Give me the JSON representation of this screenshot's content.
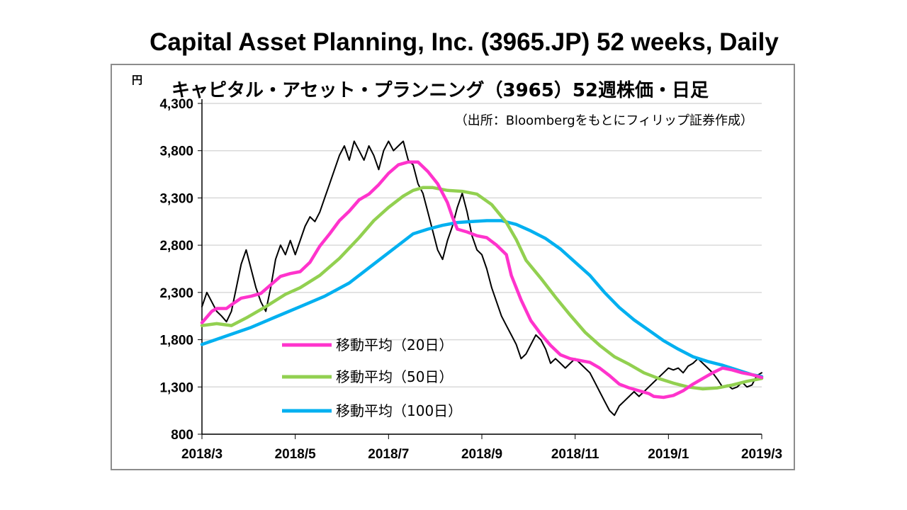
{
  "page_title": "Capital Asset Planning, Inc. (3965.JP) 52 weeks, Daily",
  "chart_data": {
    "type": "line",
    "title": "キャピタル・アセット・プランニング（3965）52週株価・日足",
    "source_note": "（出所：Bloombergをもとにフィリップ証券作成）",
    "y_unit_label": "円",
    "ylim": [
      800,
      4300
    ],
    "yticks": [
      "4,300",
      "3,800",
      "3,300",
      "2,800",
      "2,300",
      "1,800",
      "1,300",
      "800"
    ],
    "ytick_values": [
      4300,
      3800,
      3300,
      2800,
      2300,
      1800,
      1300,
      800
    ],
    "xticks": [
      "2018/3",
      "2018/5",
      "2018/7",
      "2018/9",
      "2018/11",
      "2019/1",
      "2019/3"
    ],
    "grid": true,
    "legend_position": "lower-left",
    "series": [
      {
        "name": "移動平均（20日）",
        "color": "#ff33cc",
        "points": [
          [
            0,
            1980
          ],
          [
            2,
            2100
          ],
          [
            3,
            2130
          ],
          [
            5,
            2130
          ],
          [
            6,
            2170
          ],
          [
            8,
            2240
          ],
          [
            10,
            2260
          ],
          [
            12,
            2290
          ],
          [
            14,
            2380
          ],
          [
            16,
            2470
          ],
          [
            18,
            2500
          ],
          [
            20,
            2520
          ],
          [
            22,
            2620
          ],
          [
            24,
            2790
          ],
          [
            26,
            2920
          ],
          [
            28,
            3060
          ],
          [
            30,
            3160
          ],
          [
            32,
            3280
          ],
          [
            34,
            3340
          ],
          [
            36,
            3440
          ],
          [
            38,
            3560
          ],
          [
            40,
            3650
          ],
          [
            42,
            3680
          ],
          [
            44,
            3680
          ],
          [
            46,
            3580
          ],
          [
            48,
            3450
          ],
          [
            50,
            3250
          ],
          [
            51,
            3100
          ],
          [
            52,
            2970
          ],
          [
            54,
            2940
          ],
          [
            56,
            2900
          ],
          [
            58,
            2880
          ],
          [
            60,
            2800
          ],
          [
            62,
            2700
          ],
          [
            63,
            2480
          ],
          [
            65,
            2220
          ],
          [
            67,
            2000
          ],
          [
            69,
            1860
          ],
          [
            71,
            1740
          ],
          [
            73,
            1640
          ],
          [
            75,
            1600
          ],
          [
            77,
            1580
          ],
          [
            79,
            1560
          ],
          [
            81,
            1500
          ],
          [
            83,
            1420
          ],
          [
            85,
            1330
          ],
          [
            87,
            1290
          ],
          [
            89,
            1260
          ],
          [
            91,
            1230
          ],
          [
            92,
            1200
          ],
          [
            94,
            1190
          ],
          [
            96,
            1210
          ],
          [
            98,
            1260
          ],
          [
            100,
            1330
          ],
          [
            102,
            1390
          ],
          [
            104,
            1450
          ],
          [
            106,
            1500
          ],
          [
            108,
            1480
          ],
          [
            110,
            1450
          ],
          [
            112,
            1430
          ],
          [
            114,
            1400
          ]
        ]
      },
      {
        "name": "移動平均（50日）",
        "color": "#92d050",
        "points": [
          [
            0,
            1950
          ],
          [
            3,
            1970
          ],
          [
            6,
            1950
          ],
          [
            9,
            2030
          ],
          [
            13,
            2150
          ],
          [
            17,
            2280
          ],
          [
            20,
            2350
          ],
          [
            24,
            2480
          ],
          [
            28,
            2660
          ],
          [
            32,
            2880
          ],
          [
            35,
            3060
          ],
          [
            38,
            3200
          ],
          [
            41,
            3320
          ],
          [
            43,
            3380
          ],
          [
            45,
            3410
          ],
          [
            47,
            3410
          ],
          [
            50,
            3380
          ],
          [
            53,
            3370
          ],
          [
            56,
            3340
          ],
          [
            59,
            3230
          ],
          [
            62,
            3040
          ],
          [
            64,
            2860
          ],
          [
            66,
            2640
          ],
          [
            69,
            2450
          ],
          [
            72,
            2250
          ],
          [
            75,
            2060
          ],
          [
            78,
            1880
          ],
          [
            81,
            1740
          ],
          [
            84,
            1620
          ],
          [
            87,
            1540
          ],
          [
            90,
            1450
          ],
          [
            93,
            1390
          ],
          [
            96,
            1340
          ],
          [
            99,
            1300
          ],
          [
            102,
            1280
          ],
          [
            105,
            1290
          ],
          [
            108,
            1320
          ],
          [
            111,
            1360
          ],
          [
            114,
            1390
          ]
        ]
      },
      {
        "name": "移動平均（100日）",
        "color": "#00b0f0",
        "points": [
          [
            0,
            1750
          ],
          [
            5,
            1840
          ],
          [
            10,
            1930
          ],
          [
            15,
            2040
          ],
          [
            20,
            2150
          ],
          [
            25,
            2260
          ],
          [
            30,
            2400
          ],
          [
            35,
            2600
          ],
          [
            40,
            2800
          ],
          [
            43,
            2920
          ],
          [
            46,
            2970
          ],
          [
            49,
            3010
          ],
          [
            52,
            3040
          ],
          [
            55,
            3050
          ],
          [
            58,
            3060
          ],
          [
            61,
            3060
          ],
          [
            64,
            3020
          ],
          [
            67,
            2950
          ],
          [
            70,
            2870
          ],
          [
            73,
            2760
          ],
          [
            76,
            2620
          ],
          [
            79,
            2480
          ],
          [
            82,
            2300
          ],
          [
            85,
            2140
          ],
          [
            88,
            2010
          ],
          [
            91,
            1900
          ],
          [
            94,
            1790
          ],
          [
            97,
            1700
          ],
          [
            100,
            1620
          ],
          [
            103,
            1570
          ],
          [
            106,
            1530
          ],
          [
            109,
            1480
          ],
          [
            112,
            1430
          ],
          [
            114,
            1410
          ]
        ]
      },
      {
        "name": "株価（日足）",
        "color": "#000000",
        "points": [
          [
            0,
            2150
          ],
          [
            1,
            2300
          ],
          [
            2,
            2200
          ],
          [
            3,
            2100
          ],
          [
            4,
            2050
          ],
          [
            5,
            1990
          ],
          [
            6,
            2100
          ],
          [
            7,
            2350
          ],
          [
            8,
            2600
          ],
          [
            9,
            2750
          ],
          [
            10,
            2550
          ],
          [
            11,
            2350
          ],
          [
            12,
            2200
          ],
          [
            13,
            2100
          ],
          [
            14,
            2350
          ],
          [
            15,
            2650
          ],
          [
            16,
            2800
          ],
          [
            17,
            2700
          ],
          [
            18,
            2850
          ],
          [
            19,
            2700
          ],
          [
            20,
            2850
          ],
          [
            21,
            3000
          ],
          [
            22,
            3100
          ],
          [
            23,
            3050
          ],
          [
            24,
            3150
          ],
          [
            25,
            3300
          ],
          [
            26,
            3450
          ],
          [
            27,
            3600
          ],
          [
            28,
            3750
          ],
          [
            29,
            3850
          ],
          [
            30,
            3700
          ],
          [
            31,
            3900
          ],
          [
            32,
            3800
          ],
          [
            33,
            3700
          ],
          [
            34,
            3850
          ],
          [
            35,
            3750
          ],
          [
            36,
            3600
          ],
          [
            37,
            3800
          ],
          [
            38,
            3900
          ],
          [
            39,
            3800
          ],
          [
            40,
            3850
          ],
          [
            41,
            3900
          ],
          [
            42,
            3700
          ],
          [
            43,
            3650
          ],
          [
            44,
            3450
          ],
          [
            45,
            3350
          ],
          [
            46,
            3150
          ],
          [
            47,
            2950
          ],
          [
            48,
            2750
          ],
          [
            49,
            2650
          ],
          [
            50,
            2850
          ],
          [
            51,
            3000
          ],
          [
            52,
            3200
          ],
          [
            53,
            3350
          ],
          [
            54,
            3150
          ],
          [
            55,
            2900
          ],
          [
            56,
            2750
          ],
          [
            57,
            2700
          ],
          [
            58,
            2550
          ],
          [
            59,
            2350
          ],
          [
            60,
            2200
          ],
          [
            61,
            2050
          ],
          [
            62,
            1950
          ],
          [
            63,
            1850
          ],
          [
            64,
            1750
          ],
          [
            65,
            1600
          ],
          [
            66,
            1650
          ],
          [
            67,
            1750
          ],
          [
            68,
            1850
          ],
          [
            69,
            1800
          ],
          [
            70,
            1700
          ],
          [
            71,
            1550
          ],
          [
            72,
            1600
          ],
          [
            73,
            1550
          ],
          [
            74,
            1500
          ],
          [
            75,
            1550
          ],
          [
            76,
            1600
          ],
          [
            77,
            1550
          ],
          [
            78,
            1500
          ],
          [
            79,
            1450
          ],
          [
            80,
            1350
          ],
          [
            81,
            1250
          ],
          [
            82,
            1150
          ],
          [
            83,
            1050
          ],
          [
            84,
            1000
          ],
          [
            85,
            1100
          ],
          [
            86,
            1150
          ],
          [
            87,
            1200
          ],
          [
            88,
            1250
          ],
          [
            89,
            1200
          ],
          [
            90,
            1250
          ],
          [
            91,
            1300
          ],
          [
            92,
            1350
          ],
          [
            93,
            1400
          ],
          [
            94,
            1450
          ],
          [
            95,
            1500
          ],
          [
            96,
            1480
          ],
          [
            97,
            1500
          ],
          [
            98,
            1450
          ],
          [
            99,
            1520
          ],
          [
            100,
            1550
          ],
          [
            101,
            1600
          ],
          [
            102,
            1550
          ],
          [
            103,
            1500
          ],
          [
            104,
            1450
          ],
          [
            105,
            1380
          ],
          [
            106,
            1300
          ],
          [
            107,
            1320
          ],
          [
            108,
            1280
          ],
          [
            109,
            1300
          ],
          [
            110,
            1350
          ],
          [
            111,
            1300
          ],
          [
            112,
            1320
          ],
          [
            113,
            1420
          ],
          [
            114,
            1450
          ]
        ]
      }
    ]
  }
}
